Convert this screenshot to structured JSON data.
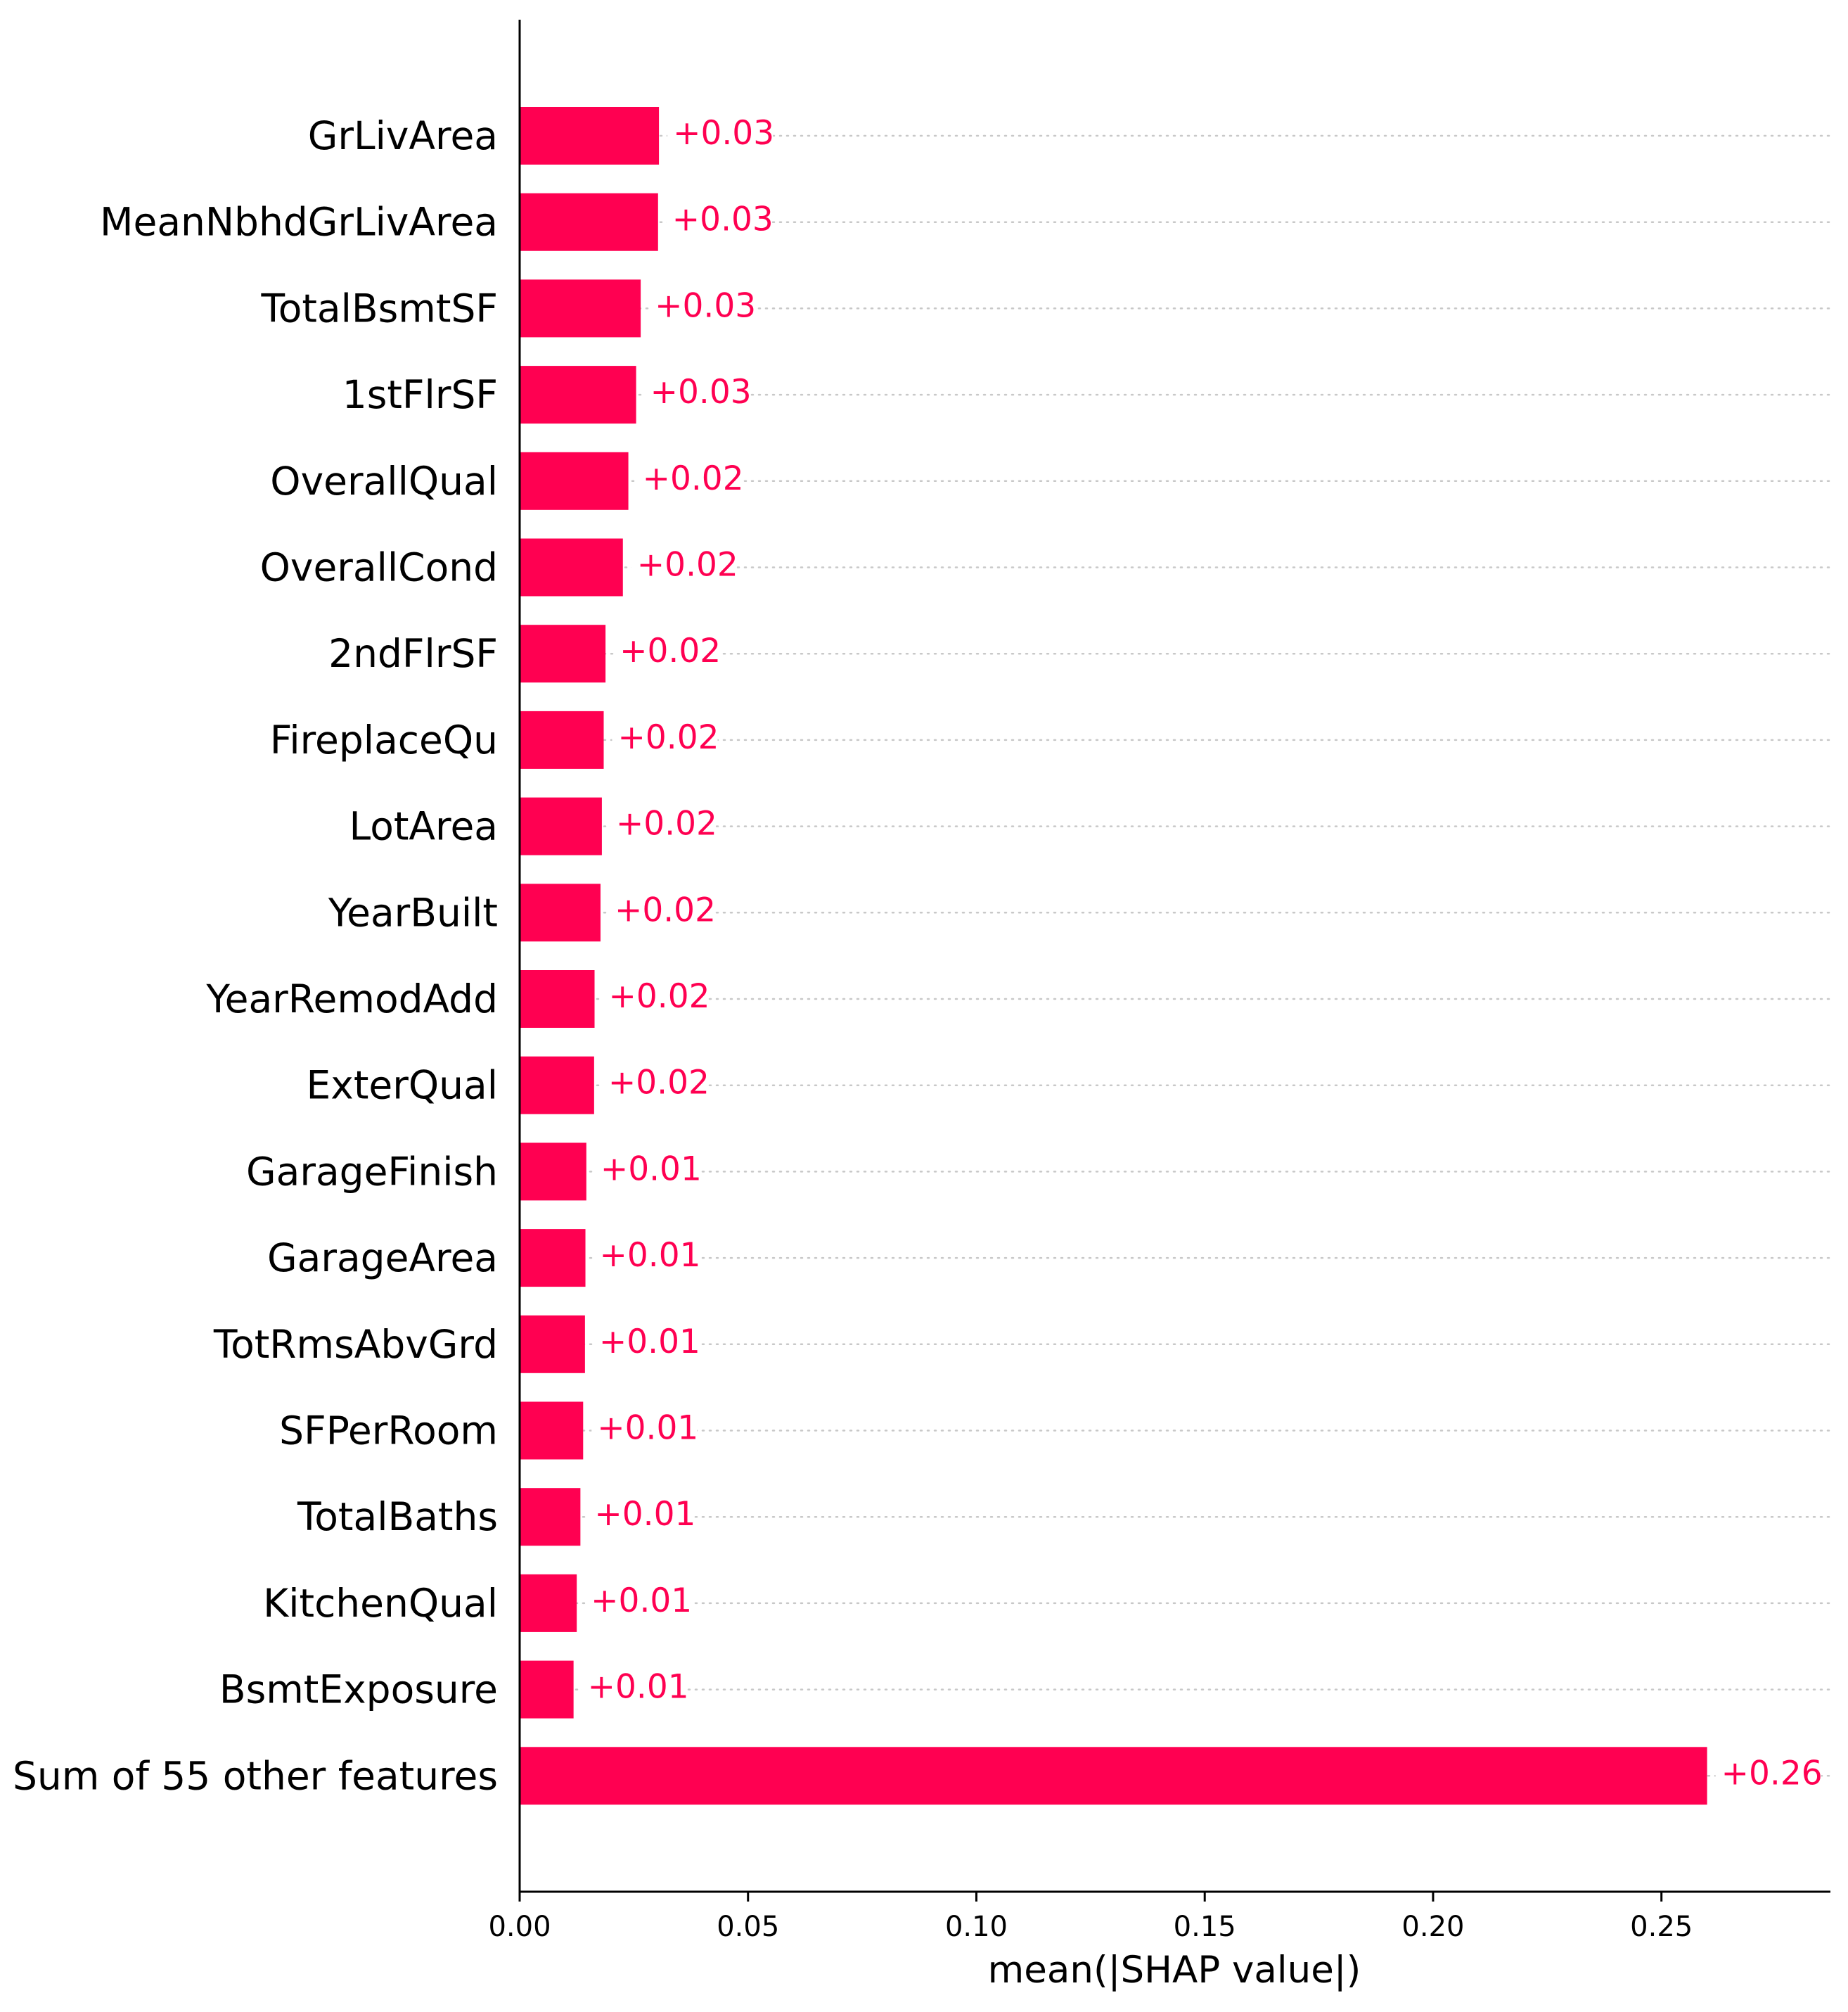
{
  "chart_data": {
    "type": "bar",
    "orientation": "horizontal",
    "xlabel": "mean(|SHAP value|)",
    "xlim": [
      0,
      0.287
    ],
    "xticks": [
      0.0,
      0.05,
      0.1,
      0.15,
      0.2,
      0.25
    ],
    "xtick_labels": [
      "0.00",
      "0.05",
      "0.10",
      "0.15",
      "0.20",
      "0.25"
    ],
    "bar_color": "#ff0051",
    "grid": "dotted horizontal lines per bar",
    "legend": "none",
    "bars": [
      {
        "label": "GrLivArea",
        "value": 0.0305,
        "text": "+0.03"
      },
      {
        "label": "MeanNbhdGrLivArea",
        "value": 0.0303,
        "text": "+0.03"
      },
      {
        "label": "TotalBsmtSF",
        "value": 0.0265,
        "text": "+0.03"
      },
      {
        "label": "1stFlrSF",
        "value": 0.0255,
        "text": "+0.03"
      },
      {
        "label": "OverallQual",
        "value": 0.0238,
        "text": "+0.02"
      },
      {
        "label": "OverallCond",
        "value": 0.0226,
        "text": "+0.02"
      },
      {
        "label": "2ndFlrSF",
        "value": 0.0188,
        "text": "+0.02"
      },
      {
        "label": "FireplaceQu",
        "value": 0.0184,
        "text": "+0.02"
      },
      {
        "label": "LotArea",
        "value": 0.018,
        "text": "+0.02"
      },
      {
        "label": "YearBuilt",
        "value": 0.0177,
        "text": "+0.02"
      },
      {
        "label": "YearRemodAdd",
        "value": 0.0164,
        "text": "+0.02"
      },
      {
        "label": "ExterQual",
        "value": 0.0163,
        "text": "+0.02"
      },
      {
        "label": "GarageFinish",
        "value": 0.0146,
        "text": "+0.01"
      },
      {
        "label": "GarageArea",
        "value": 0.0144,
        "text": "+0.01"
      },
      {
        "label": "TotRmsAbvGrd",
        "value": 0.0143,
        "text": "+0.01"
      },
      {
        "label": "SFPerRoom",
        "value": 0.0139,
        "text": "+0.01"
      },
      {
        "label": "TotalBaths",
        "value": 0.0133,
        "text": "+0.01"
      },
      {
        "label": "KitchenQual",
        "value": 0.0125,
        "text": "+0.01"
      },
      {
        "label": "BsmtExposure",
        "value": 0.0118,
        "text": "+0.01"
      },
      {
        "label": "Sum of 55 other features",
        "value": 0.26,
        "text": "+0.26"
      }
    ]
  }
}
